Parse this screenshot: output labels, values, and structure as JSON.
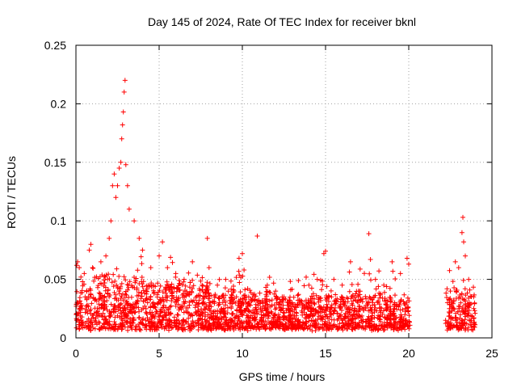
{
  "chart_data": {
    "type": "scatter",
    "title": "Day 145 of 2024, Rate Of TEC Index for receiver bknl",
    "xlabel": "GPS time / hours",
    "ylabel": "ROTI / TECUs",
    "xlim": [
      0,
      25
    ],
    "ylim": [
      0,
      0.25
    ],
    "xticks": [
      0,
      5,
      10,
      15,
      20,
      25
    ],
    "xtick_labels": [
      "0",
      "5",
      "10",
      "15",
      "20",
      "25"
    ],
    "yticks": [
      0,
      0.05,
      0.1,
      0.15,
      0.2,
      0.25
    ],
    "ytick_labels": [
      "0",
      "0.05",
      "0.1",
      "0.15",
      "0.2",
      "0.25"
    ],
    "grid": true,
    "marker": "+",
    "color": "#ff0000",
    "data_gap_hours": [
      20.1,
      22.2
    ],
    "series": [
      {
        "name": "ROTI",
        "x": [
          0.05,
          0.1,
          0.2,
          0.3,
          0.4,
          0.5,
          0.8,
          0.9,
          1.0,
          1.5,
          1.8,
          2.0,
          2.1,
          2.2,
          2.3,
          2.4,
          2.5,
          2.6,
          2.7,
          2.75,
          2.8,
          2.85,
          2.9,
          2.95,
          3.0,
          3.1,
          3.2,
          3.5,
          3.8,
          4.0,
          4.5,
          5.0,
          5.2,
          5.5,
          6.0,
          6.5,
          7.0,
          7.9,
          8.0,
          8.5,
          9.0,
          9.8,
          10.0,
          10.1,
          10.9,
          11.5,
          12.0,
          12.5,
          13.0,
          13.5,
          14.0,
          14.5,
          14.9,
          15.0,
          15.5,
          16.0,
          16.5,
          17.0,
          17.6,
          17.7,
          18.0,
          18.5,
          19.0,
          19.5,
          19.9,
          20.0,
          22.3,
          22.5,
          22.8,
          23.0,
          23.2,
          23.25,
          23.3,
          23.4,
          23.6,
          23.9
        ],
        "y": [
          0.062,
          0.065,
          0.06,
          0.052,
          0.048,
          0.055,
          0.075,
          0.08,
          0.06,
          0.065,
          0.07,
          0.085,
          0.1,
          0.13,
          0.14,
          0.12,
          0.13,
          0.145,
          0.15,
          0.17,
          0.182,
          0.193,
          0.21,
          0.22,
          0.148,
          0.13,
          0.11,
          0.1,
          0.085,
          0.075,
          0.06,
          0.07,
          0.082,
          0.06,
          0.055,
          0.05,
          0.065,
          0.085,
          0.06,
          0.045,
          0.05,
          0.068,
          0.072,
          0.058,
          0.087,
          0.045,
          0.04,
          0.035,
          0.03,
          0.032,
          0.045,
          0.05,
          0.072,
          0.074,
          0.05,
          0.045,
          0.065,
          0.04,
          0.089,
          0.067,
          0.05,
          0.045,
          0.065,
          0.055,
          0.068,
          0.063,
          0.042,
          0.04,
          0.065,
          0.06,
          0.09,
          0.103,
          0.082,
          0.07,
          0.05,
          0.035
        ]
      }
    ]
  }
}
